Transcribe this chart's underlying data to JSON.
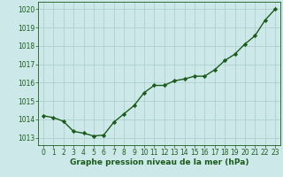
{
  "x": [
    0,
    1,
    2,
    3,
    4,
    5,
    6,
    7,
    8,
    9,
    10,
    11,
    12,
    13,
    14,
    15,
    16,
    17,
    18,
    19,
    20,
    21,
    22,
    23
  ],
  "y": [
    1014.2,
    1014.1,
    1013.9,
    1013.35,
    1013.25,
    1013.1,
    1013.15,
    1013.85,
    1014.3,
    1014.75,
    1015.45,
    1015.85,
    1015.85,
    1016.1,
    1016.2,
    1016.35,
    1016.35,
    1016.7,
    1017.2,
    1017.55,
    1018.1,
    1018.55,
    1019.4,
    1020.0
  ],
  "line_color": "#1a5c1a",
  "marker": "D",
  "marker_size": 2.2,
  "line_width": 1.0,
  "bg_color": "#cce8e8",
  "grid_color": "#b0d0d0",
  "xlabel": "Graphe pression niveau de la mer (hPa)",
  "xlabel_color": "#1a5c1a",
  "xlabel_fontsize": 6.5,
  "tick_color": "#1a5c1a",
  "tick_fontsize": 5.5,
  "ylim": [
    1012.6,
    1020.4
  ],
  "yticks": [
    1013,
    1014,
    1015,
    1016,
    1017,
    1018,
    1019,
    1020
  ],
  "xticks": [
    0,
    1,
    2,
    3,
    4,
    5,
    6,
    7,
    8,
    9,
    10,
    11,
    12,
    13,
    14,
    15,
    16,
    17,
    18,
    19,
    20,
    21,
    22,
    23
  ]
}
